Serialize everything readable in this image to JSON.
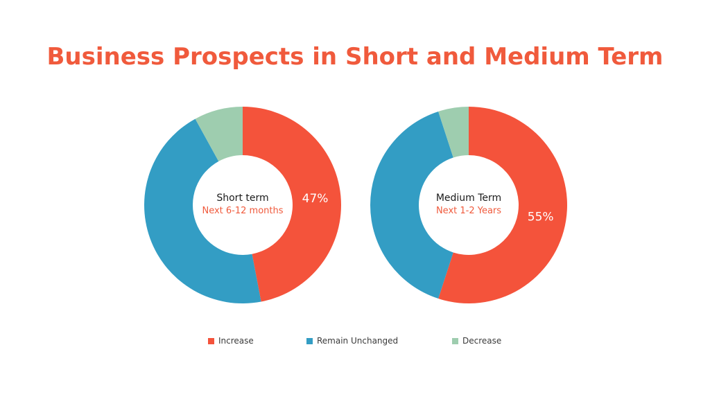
{
  "page": {
    "title": "Business Prospects in Short and Medium Term",
    "title_color": "#f05a3c"
  },
  "colors": {
    "increase": "#f4533b",
    "remain": "#339dc4",
    "decrease": "#9ecdaf",
    "accent_text": "#f05a3c"
  },
  "legend": [
    {
      "label": "Increase",
      "color": "#f4533b"
    },
    {
      "label": "Remain Unchanged",
      "color": "#339dc4"
    },
    {
      "label": "Decrease",
      "color": "#9ecdaf"
    }
  ],
  "chart_data": [
    {
      "type": "pie",
      "title": "Short term",
      "subtitle": "Next 6-12 months",
      "categories": [
        "Increase",
        "Remain Unchanged",
        "Decrease"
      ],
      "values": [
        47,
        45,
        8
      ],
      "labels": [
        "47%",
        "",
        ""
      ]
    },
    {
      "type": "pie",
      "title": "Medium Term",
      "subtitle": "Next 1-2 Years",
      "categories": [
        "Increase",
        "Remain Unchanged",
        "Decrease"
      ],
      "values": [
        55,
        40,
        5
      ],
      "labels": [
        "55%",
        "",
        ""
      ]
    }
  ]
}
